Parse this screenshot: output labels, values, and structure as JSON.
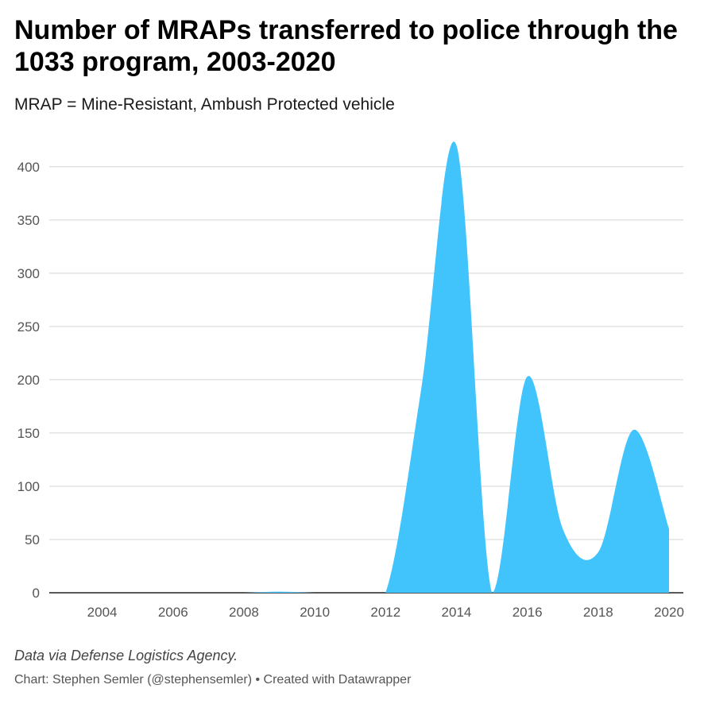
{
  "chart_data": {
    "type": "area",
    "title": "Number of MRAPs transferred to police through the 1033 program, 2003-2020",
    "subtitle": "MRAP = Mine-Resistant, Ambush Protected vehicle",
    "x": [
      2003,
      2004,
      2005,
      2006,
      2007,
      2008,
      2009,
      2010,
      2011,
      2012,
      2013,
      2014,
      2015,
      2016,
      2017,
      2018,
      2019,
      2020
    ],
    "series": [
      {
        "values": [
          0,
          0,
          0,
          0,
          0,
          0,
          1,
          0,
          0,
          0,
          190,
          420,
          0,
          203,
          60,
          38,
          153,
          60
        ]
      }
    ],
    "xticks": [
      "2004",
      "2006",
      "2008",
      "2010",
      "2012",
      "2014",
      "2016",
      "2018",
      "2020"
    ],
    "yticks": [
      "0",
      "50",
      "100",
      "150",
      "200",
      "250",
      "300",
      "350",
      "400"
    ],
    "xlim": [
      2003,
      2020
    ],
    "ylim": [
      0,
      420
    ],
    "grid": true,
    "color": "#41c3fc",
    "notes": "Data via Defense Logistics Agency.",
    "byline": "Chart: Stephen Semler (@stephensemler) • Created with Datawrapper"
  }
}
